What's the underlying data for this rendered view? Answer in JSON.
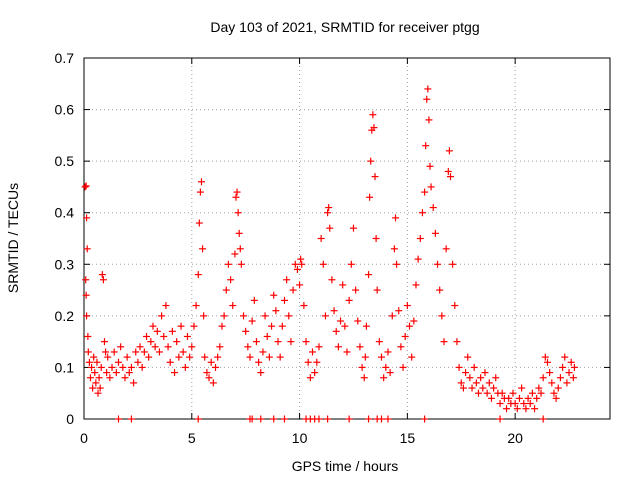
{
  "chart_data": {
    "type": "scatter",
    "title": "Day 103 of 2021, SRMTID for receiver ptgg",
    "xlabel": "GPS time / hours",
    "ylabel": "SRMTID / TECUs",
    "xlim": [
      0,
      24.4
    ],
    "ylim": [
      0,
      0.7
    ],
    "xticks": [
      0,
      5,
      10,
      15,
      20
    ],
    "xtick_labels": [
      "0",
      "5",
      "10",
      "15",
      "20"
    ],
    "yticks": [
      0,
      0.1,
      0.2,
      0.3,
      0.4,
      0.5,
      0.6,
      0.7
    ],
    "ytick_labels": [
      "0",
      "0.1",
      "0.2",
      "0.3",
      "0.4",
      "0.5",
      "0.6",
      "0.7"
    ],
    "grid": true,
    "marker": "plus",
    "series": [
      {
        "name": "SRMTID",
        "color": "#ff0000",
        "points": [
          [
            0.05,
            0.45
          ],
          [
            0.1,
            0.452
          ],
          [
            0.12,
            0.39
          ],
          [
            0.15,
            0.33
          ],
          [
            0.08,
            0.27
          ],
          [
            0.1,
            0.24
          ],
          [
            0.12,
            0.2
          ],
          [
            0.18,
            0.16
          ],
          [
            0.2,
            0.13
          ],
          [
            0.25,
            0.11
          ],
          [
            0.3,
            0.08
          ],
          [
            0.35,
            0.1
          ],
          [
            0.4,
            0.06
          ],
          [
            0.45,
            0.12
          ],
          [
            0.5,
            0.09
          ],
          [
            0.55,
            0.07
          ],
          [
            0.6,
            0.11
          ],
          [
            0.65,
            0.05
          ],
          [
            0.7,
            0.08
          ],
          [
            0.75,
            0.06
          ],
          [
            0.8,
            0.1
          ],
          [
            0.85,
            0.28
          ],
          [
            0.9,
            0.27
          ],
          [
            0.95,
            0.15
          ],
          [
            1.0,
            0.13
          ],
          [
            1.05,
            0.09
          ],
          [
            1.1,
            0.12
          ],
          [
            1.2,
            0.08
          ],
          [
            1.3,
            0.1
          ],
          [
            1.4,
            0.13
          ],
          [
            1.5,
            0.09
          ],
          [
            1.6,
            0.11
          ],
          [
            1.7,
            0.14
          ],
          [
            1.8,
            0.1
          ],
          [
            1.9,
            0.08
          ],
          [
            2.0,
            0.12
          ],
          [
            2.1,
            0.09
          ],
          [
            2.2,
            0.1
          ],
          [
            2.3,
            0.07
          ],
          [
            2.4,
            0.13
          ],
          [
            2.5,
            0.11
          ],
          [
            2.6,
            0.14
          ],
          [
            2.7,
            0.1
          ],
          [
            2.8,
            0.13
          ],
          [
            2.9,
            0.16
          ],
          [
            3.0,
            0.12
          ],
          [
            3.1,
            0.15
          ],
          [
            3.2,
            0.18
          ],
          [
            3.3,
            0.14
          ],
          [
            3.4,
            0.17
          ],
          [
            3.5,
            0.13
          ],
          [
            3.6,
            0.2
          ],
          [
            3.7,
            0.16
          ],
          [
            3.8,
            0.22
          ],
          [
            3.9,
            0.14
          ],
          [
            4.0,
            0.11
          ],
          [
            4.1,
            0.17
          ],
          [
            4.2,
            0.09
          ],
          [
            4.3,
            0.15
          ],
          [
            4.4,
            0.12
          ],
          [
            4.5,
            0.18
          ],
          [
            4.6,
            0.13
          ],
          [
            4.7,
            0.1
          ],
          [
            4.8,
            0.16
          ],
          [
            4.9,
            0.12
          ],
          [
            5.0,
            0.14
          ],
          [
            5.1,
            0.18
          ],
          [
            5.2,
            0.22
          ],
          [
            5.3,
            0.28
          ],
          [
            5.35,
            0.38
          ],
          [
            5.4,
            0.44
          ],
          [
            5.45,
            0.46
          ],
          [
            5.5,
            0.33
          ],
          [
            5.55,
            0.2
          ],
          [
            5.6,
            0.12
          ],
          [
            5.7,
            0.09
          ],
          [
            5.8,
            0.08
          ],
          [
            5.9,
            0.11
          ],
          [
            6.0,
            0.07
          ],
          [
            6.1,
            0.1
          ],
          [
            6.2,
            0.12
          ],
          [
            6.3,
            0.14
          ],
          [
            6.4,
            0.18
          ],
          [
            6.5,
            0.2
          ],
          [
            6.6,
            0.25
          ],
          [
            6.7,
            0.3
          ],
          [
            6.8,
            0.27
          ],
          [
            6.9,
            0.22
          ],
          [
            7.0,
            0.32
          ],
          [
            7.05,
            0.43
          ],
          [
            7.1,
            0.44
          ],
          [
            7.15,
            0.4
          ],
          [
            7.2,
            0.36
          ],
          [
            7.25,
            0.33
          ],
          [
            7.3,
            0.3
          ],
          [
            7.4,
            0.2
          ],
          [
            7.5,
            0.17
          ],
          [
            7.6,
            0.14
          ],
          [
            7.7,
            0.12
          ],
          [
            7.8,
            0.19
          ],
          [
            7.9,
            0.23
          ],
          [
            8.0,
            0.15
          ],
          [
            8.1,
            0.11
          ],
          [
            8.2,
            0.09
          ],
          [
            8.3,
            0.13
          ],
          [
            8.4,
            0.2
          ],
          [
            8.5,
            0.16
          ],
          [
            8.6,
            0.12
          ],
          [
            8.7,
            0.18
          ],
          [
            8.8,
            0.24
          ],
          [
            8.9,
            0.21
          ],
          [
            9.0,
            0.15
          ],
          [
            9.1,
            0.12
          ],
          [
            9.2,
            0.18
          ],
          [
            9.3,
            0.23
          ],
          [
            9.4,
            0.27
          ],
          [
            9.5,
            0.2
          ],
          [
            9.6,
            0.15
          ],
          [
            9.7,
            0.25
          ],
          [
            9.8,
            0.3
          ],
          [
            9.9,
            0.29
          ],
          [
            10.0,
            0.26
          ],
          [
            10.05,
            0.31
          ],
          [
            10.1,
            0.3
          ],
          [
            10.2,
            0.22
          ],
          [
            10.3,
            0.15
          ],
          [
            10.4,
            0.11
          ],
          [
            10.5,
            0.08
          ],
          [
            10.6,
            0.13
          ],
          [
            10.7,
            0.09
          ],
          [
            10.8,
            0.11
          ],
          [
            10.9,
            0.14
          ],
          [
            11.0,
            0.35
          ],
          [
            11.1,
            0.3
          ],
          [
            11.2,
            0.2
          ],
          [
            11.3,
            0.4
          ],
          [
            11.35,
            0.41
          ],
          [
            11.4,
            0.37
          ],
          [
            11.5,
            0.27
          ],
          [
            11.6,
            0.21
          ],
          [
            11.7,
            0.17
          ],
          [
            11.8,
            0.14
          ],
          [
            11.9,
            0.19
          ],
          [
            12.0,
            0.26
          ],
          [
            12.1,
            0.18
          ],
          [
            12.2,
            0.13
          ],
          [
            12.3,
            0.23
          ],
          [
            12.4,
            0.3
          ],
          [
            12.5,
            0.37
          ],
          [
            12.6,
            0.25
          ],
          [
            12.7,
            0.19
          ],
          [
            12.8,
            0.14
          ],
          [
            12.9,
            0.1
          ],
          [
            13.0,
            0.08
          ],
          [
            13.05,
            0.12
          ],
          [
            13.1,
            0.18
          ],
          [
            13.2,
            0.28
          ],
          [
            13.25,
            0.43
          ],
          [
            13.3,
            0.5
          ],
          [
            13.35,
            0.56
          ],
          [
            13.4,
            0.59
          ],
          [
            13.45,
            0.565
          ],
          [
            13.5,
            0.47
          ],
          [
            13.55,
            0.35
          ],
          [
            13.6,
            0.25
          ],
          [
            13.7,
            0.15
          ],
          [
            13.8,
            0.12
          ],
          [
            13.9,
            0.08
          ],
          [
            14.0,
            0.1
          ],
          [
            14.1,
            0.13
          ],
          [
            14.2,
            0.09
          ],
          [
            14.3,
            0.2
          ],
          [
            14.4,
            0.33
          ],
          [
            14.45,
            0.39
          ],
          [
            14.5,
            0.3
          ],
          [
            14.6,
            0.21
          ],
          [
            14.7,
            0.14
          ],
          [
            14.8,
            0.1
          ],
          [
            14.9,
            0.16
          ],
          [
            15.0,
            0.22
          ],
          [
            15.1,
            0.18
          ],
          [
            15.2,
            0.12
          ],
          [
            15.3,
            0.19
          ],
          [
            15.4,
            0.26
          ],
          [
            15.5,
            0.31
          ],
          [
            15.6,
            0.35
          ],
          [
            15.7,
            0.4
          ],
          [
            15.8,
            0.44
          ],
          [
            15.85,
            0.53
          ],
          [
            15.9,
            0.62
          ],
          [
            15.95,
            0.64
          ],
          [
            16.0,
            0.58
          ],
          [
            16.05,
            0.49
          ],
          [
            16.1,
            0.45
          ],
          [
            16.2,
            0.41
          ],
          [
            16.3,
            0.36
          ],
          [
            16.4,
            0.3
          ],
          [
            16.5,
            0.25
          ],
          [
            16.6,
            0.2
          ],
          [
            16.7,
            0.15
          ],
          [
            16.8,
            0.33
          ],
          [
            16.9,
            0.48
          ],
          [
            16.95,
            0.52
          ],
          [
            17.0,
            0.47
          ],
          [
            17.1,
            0.3
          ],
          [
            17.2,
            0.22
          ],
          [
            17.3,
            0.15
          ],
          [
            17.4,
            0.1
          ],
          [
            17.5,
            0.07
          ],
          [
            17.6,
            0.06
          ],
          [
            17.7,
            0.09
          ],
          [
            17.8,
            0.12
          ],
          [
            17.9,
            0.08
          ],
          [
            18.0,
            0.06
          ],
          [
            18.1,
            0.1
          ],
          [
            18.2,
            0.07
          ],
          [
            18.3,
            0.05
          ],
          [
            18.4,
            0.08
          ],
          [
            18.5,
            0.06
          ],
          [
            18.6,
            0.09
          ],
          [
            18.7,
            0.05
          ],
          [
            18.8,
            0.07
          ],
          [
            18.9,
            0.04
          ],
          [
            19.0,
            0.06
          ],
          [
            19.1,
            0.08
          ],
          [
            19.2,
            0.05
          ],
          [
            19.3,
            0.03
          ],
          [
            19.4,
            0.05
          ],
          [
            19.5,
            0.04
          ],
          [
            19.6,
            0.02
          ],
          [
            19.7,
            0.04
          ],
          [
            19.8,
            0.03
          ],
          [
            19.9,
            0.05
          ],
          [
            20.0,
            0.03
          ],
          [
            20.1,
            0.02
          ],
          [
            20.2,
            0.04
          ],
          [
            20.3,
            0.06
          ],
          [
            20.4,
            0.03
          ],
          [
            20.5,
            0.02
          ],
          [
            20.6,
            0.04
          ],
          [
            20.7,
            0.03
          ],
          [
            20.8,
            0.05
          ],
          [
            20.9,
            0.02
          ],
          [
            21.0,
            0.04
          ],
          [
            21.1,
            0.06
          ],
          [
            21.2,
            0.05
          ],
          [
            21.3,
            0.08
          ],
          [
            21.4,
            0.12
          ],
          [
            21.5,
            0.11
          ],
          [
            21.6,
            0.09
          ],
          [
            21.7,
            0.07
          ],
          [
            21.8,
            0.05
          ],
          [
            21.9,
            0.04
          ],
          [
            22.0,
            0.06
          ],
          [
            22.1,
            0.08
          ],
          [
            22.2,
            0.1
          ],
          [
            22.3,
            0.12
          ],
          [
            22.4,
            0.07
          ],
          [
            22.5,
            0.09
          ],
          [
            22.6,
            0.11
          ],
          [
            22.7,
            0.08
          ],
          [
            22.75,
            0.1
          ],
          [
            1.6,
            0.0
          ],
          [
            2.2,
            0.0
          ],
          [
            5.3,
            0.0
          ],
          [
            7.7,
            0.0
          ],
          [
            7.8,
            0.0
          ],
          [
            8.2,
            0.0
          ],
          [
            8.8,
            0.0
          ],
          [
            9.3,
            0.0
          ],
          [
            10.3,
            0.0
          ],
          [
            10.5,
            0.0
          ],
          [
            10.7,
            0.0
          ],
          [
            10.9,
            0.0
          ],
          [
            11.3,
            0.0
          ],
          [
            12.3,
            0.0
          ],
          [
            13.2,
            0.0
          ],
          [
            13.6,
            0.0
          ],
          [
            13.8,
            0.0
          ],
          [
            14.1,
            0.0
          ],
          [
            15.8,
            0.0
          ],
          [
            19.3,
            0.0
          ],
          [
            21.3,
            0.0
          ]
        ]
      }
    ]
  }
}
